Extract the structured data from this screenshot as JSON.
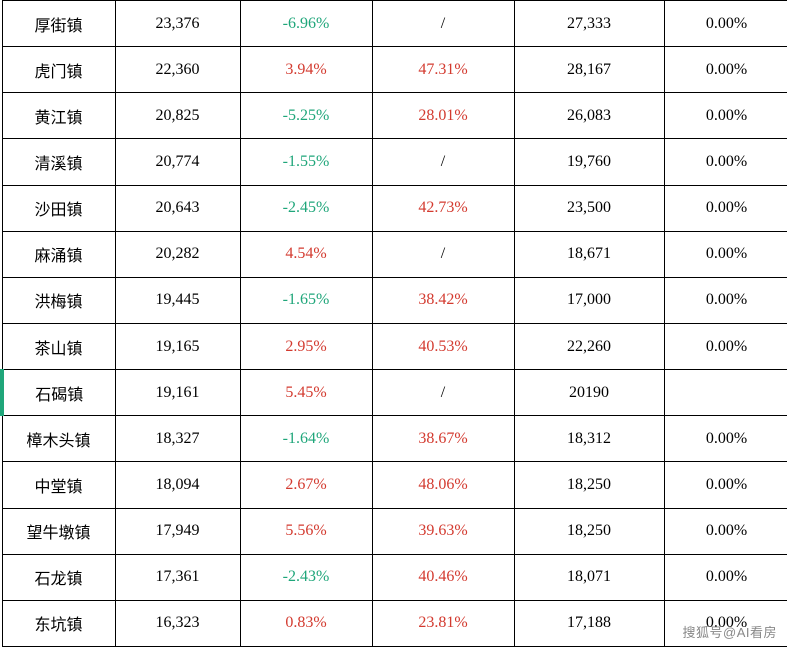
{
  "colors": {
    "pos": "#d33a2f",
    "neg": "#1fa67a",
    "neutral": "#000000",
    "border": "#000000",
    "bg": "#ffffff"
  },
  "watermark": "搜狐号@AI看房",
  "rows": [
    {
      "name": "厚街镇",
      "v1": "23,376",
      "p1": "-6.96%",
      "p1c": "neg",
      "p2": "/",
      "p2c": "neutral",
      "v2": "27,333",
      "p3": "0.00%",
      "highlight": false
    },
    {
      "name": "虎门镇",
      "v1": "22,360",
      "p1": "3.94%",
      "p1c": "pos",
      "p2": "47.31%",
      "p2c": "pos",
      "v2": "28,167",
      "p3": "0.00%",
      "highlight": false
    },
    {
      "name": "黄江镇",
      "v1": "20,825",
      "p1": "-5.25%",
      "p1c": "neg",
      "p2": "28.01%",
      "p2c": "pos",
      "v2": "26,083",
      "p3": "0.00%",
      "highlight": false
    },
    {
      "name": "清溪镇",
      "v1": "20,774",
      "p1": "-1.55%",
      "p1c": "neg",
      "p2": "/",
      "p2c": "neutral",
      "v2": "19,760",
      "p3": "0.00%",
      "highlight": false
    },
    {
      "name": "沙田镇",
      "v1": "20,643",
      "p1": "-2.45%",
      "p1c": "neg",
      "p2": "42.73%",
      "p2c": "pos",
      "v2": "23,500",
      "p3": "0.00%",
      "highlight": false
    },
    {
      "name": "麻涌镇",
      "v1": "20,282",
      "p1": "4.54%",
      "p1c": "pos",
      "p2": "/",
      "p2c": "neutral",
      "v2": "18,671",
      "p3": "0.00%",
      "highlight": false
    },
    {
      "name": "洪梅镇",
      "v1": "19,445",
      "p1": "-1.65%",
      "p1c": "neg",
      "p2": "38.42%",
      "p2c": "pos",
      "v2": "17,000",
      "p3": "0.00%",
      "highlight": false
    },
    {
      "name": "茶山镇",
      "v1": "19,165",
      "p1": "2.95%",
      "p1c": "pos",
      "p2": "40.53%",
      "p2c": "pos",
      "v2": "22,260",
      "p3": "0.00%",
      "highlight": false
    },
    {
      "name": "石碣镇",
      "v1": "19,161",
      "p1": "5.45%",
      "p1c": "pos",
      "p2": "/",
      "p2c": "neutral",
      "v2": "20190",
      "p3": "",
      "highlight": true
    },
    {
      "name": "樟木头镇",
      "v1": "18,327",
      "p1": "-1.64%",
      "p1c": "neg",
      "p2": "38.67%",
      "p2c": "pos",
      "v2": "18,312",
      "p3": "0.00%",
      "highlight": false
    },
    {
      "name": "中堂镇",
      "v1": "18,094",
      "p1": "2.67%",
      "p1c": "pos",
      "p2": "48.06%",
      "p2c": "pos",
      "v2": "18,250",
      "p3": "0.00%",
      "highlight": false
    },
    {
      "name": "望牛墩镇",
      "v1": "17,949",
      "p1": "5.56%",
      "p1c": "pos",
      "p2": "39.63%",
      "p2c": "pos",
      "v2": "18,250",
      "p3": "0.00%",
      "highlight": false
    },
    {
      "name": "石龙镇",
      "v1": "17,361",
      "p1": "-2.43%",
      "p1c": "neg",
      "p2": "40.46%",
      "p2c": "pos",
      "v2": "18,071",
      "p3": "0.00%",
      "highlight": false
    },
    {
      "name": "东坑镇",
      "v1": "16,323",
      "p1": "0.83%",
      "p1c": "pos",
      "p2": "23.81%",
      "p2c": "pos",
      "v2": "17,188",
      "p3": "0.00%",
      "highlight": false
    }
  ]
}
